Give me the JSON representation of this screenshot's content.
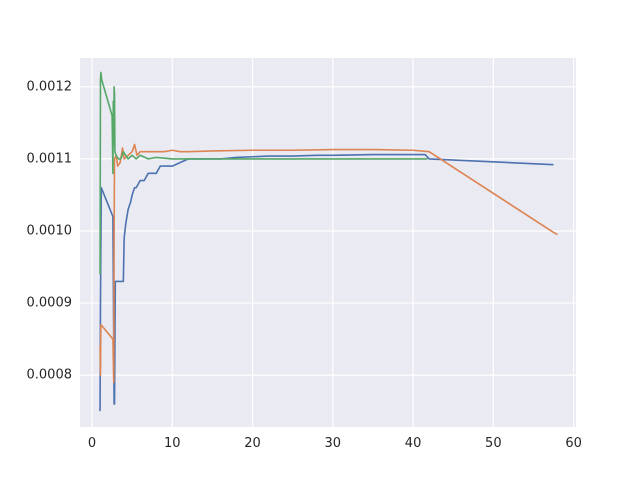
{
  "chart_data": {
    "type": "line",
    "title": "",
    "xlabel": "",
    "ylabel": "",
    "xlim": [
      -1.5,
      60.3
    ],
    "ylim": [
      0.000728,
      0.00124
    ],
    "grid": true,
    "background": "#eaeaf2",
    "grid_color": "#ffffff",
    "x_ticks": [
      0,
      10,
      20,
      30,
      40,
      50,
      60
    ],
    "x_tick_labels": [
      "0",
      "10",
      "20",
      "30",
      "40",
      "50",
      "60"
    ],
    "y_ticks": [
      0.0008,
      0.0009,
      0.001,
      0.0011,
      0.0012
    ],
    "y_tick_labels": [
      "0.0008",
      "0.0009",
      "0.0010",
      "0.0011",
      "0.0012"
    ],
    "series": [
      {
        "color": "#4c72b0",
        "x": [
          1.0,
          1.05,
          1.15,
          2.6,
          2.7,
          2.75,
          2.8,
          2.9,
          2.95,
          3.0,
          3.5,
          3.9,
          4.0,
          4.2,
          4.5,
          4.8,
          5.0,
          5.3,
          5.5,
          6.0,
          6.5,
          7.0,
          8.0,
          8.5,
          9.0,
          10.0,
          11.0,
          12.0,
          14.0,
          16.0,
          18.0,
          20.0,
          22.0,
          25.0,
          28.0,
          30.0,
          35.0,
          40.0,
          41.5,
          42.0,
          57.5
        ],
        "y": [
          0.00075,
          0.0009,
          0.00106,
          0.00102,
          0.00085,
          0.00076,
          0.00076,
          0.00093,
          0.00093,
          0.00093,
          0.00093,
          0.00093,
          0.00099,
          0.00101,
          0.00103,
          0.00104,
          0.00105,
          0.00106,
          0.00106,
          0.00107,
          0.00107,
          0.00108,
          0.00108,
          0.00109,
          0.00109,
          0.00109,
          0.001095,
          0.0011,
          0.0011,
          0.0011,
          0.001102,
          0.001103,
          0.001104,
          0.001104,
          0.001105,
          0.001105,
          0.001106,
          0.001106,
          0.001106,
          0.0011,
          0.001092
        ]
      },
      {
        "color": "#dd8452",
        "x": [
          1.0,
          1.05,
          1.1,
          2.6,
          2.7,
          2.75,
          2.8,
          3.0,
          3.2,
          3.5,
          3.8,
          4.0,
          4.5,
          5.0,
          5.3,
          5.6,
          6.0,
          7.0,
          8.0,
          9.0,
          10.0,
          11.0,
          12.0,
          15.0,
          20.0,
          25.0,
          30.0,
          35.0,
          40.0,
          42.0,
          57.5,
          58.0
        ],
        "y": [
          0.00084,
          0.0008,
          0.00087,
          0.00085,
          0.00079,
          0.00099,
          0.0011,
          0.001105,
          0.00109,
          0.001095,
          0.001115,
          0.0011,
          0.001105,
          0.00111,
          0.00112,
          0.001105,
          0.00111,
          0.00111,
          0.00111,
          0.00111,
          0.001112,
          0.00111,
          0.00111,
          0.001111,
          0.001112,
          0.001112,
          0.001113,
          0.001113,
          0.001112,
          0.00111,
          0.000998,
          0.000995
        ]
      },
      {
        "color": "#55a868",
        "x": [
          1.0,
          1.05,
          1.1,
          1.2,
          2.5,
          2.6,
          2.65,
          2.7,
          2.75,
          2.8,
          2.85,
          3.0,
          3.3,
          3.6,
          3.9,
          4.2,
          4.5,
          5.0,
          5.5,
          6.0,
          7.0,
          8.0,
          9.0,
          10.0,
          12.0,
          15.0,
          20.0,
          30.0,
          41.8
        ],
        "y": [
          0.00094,
          0.00121,
          0.00122,
          0.00121,
          0.00116,
          0.00108,
          0.00118,
          0.00112,
          0.0012,
          0.00119,
          0.00111,
          0.001105,
          0.0011,
          0.0011,
          0.00111,
          0.001105,
          0.0011,
          0.001105,
          0.0011,
          0.001105,
          0.0011,
          0.001102,
          0.001101,
          0.0011,
          0.0011,
          0.0011,
          0.0011,
          0.0011,
          0.0011
        ]
      }
    ]
  }
}
